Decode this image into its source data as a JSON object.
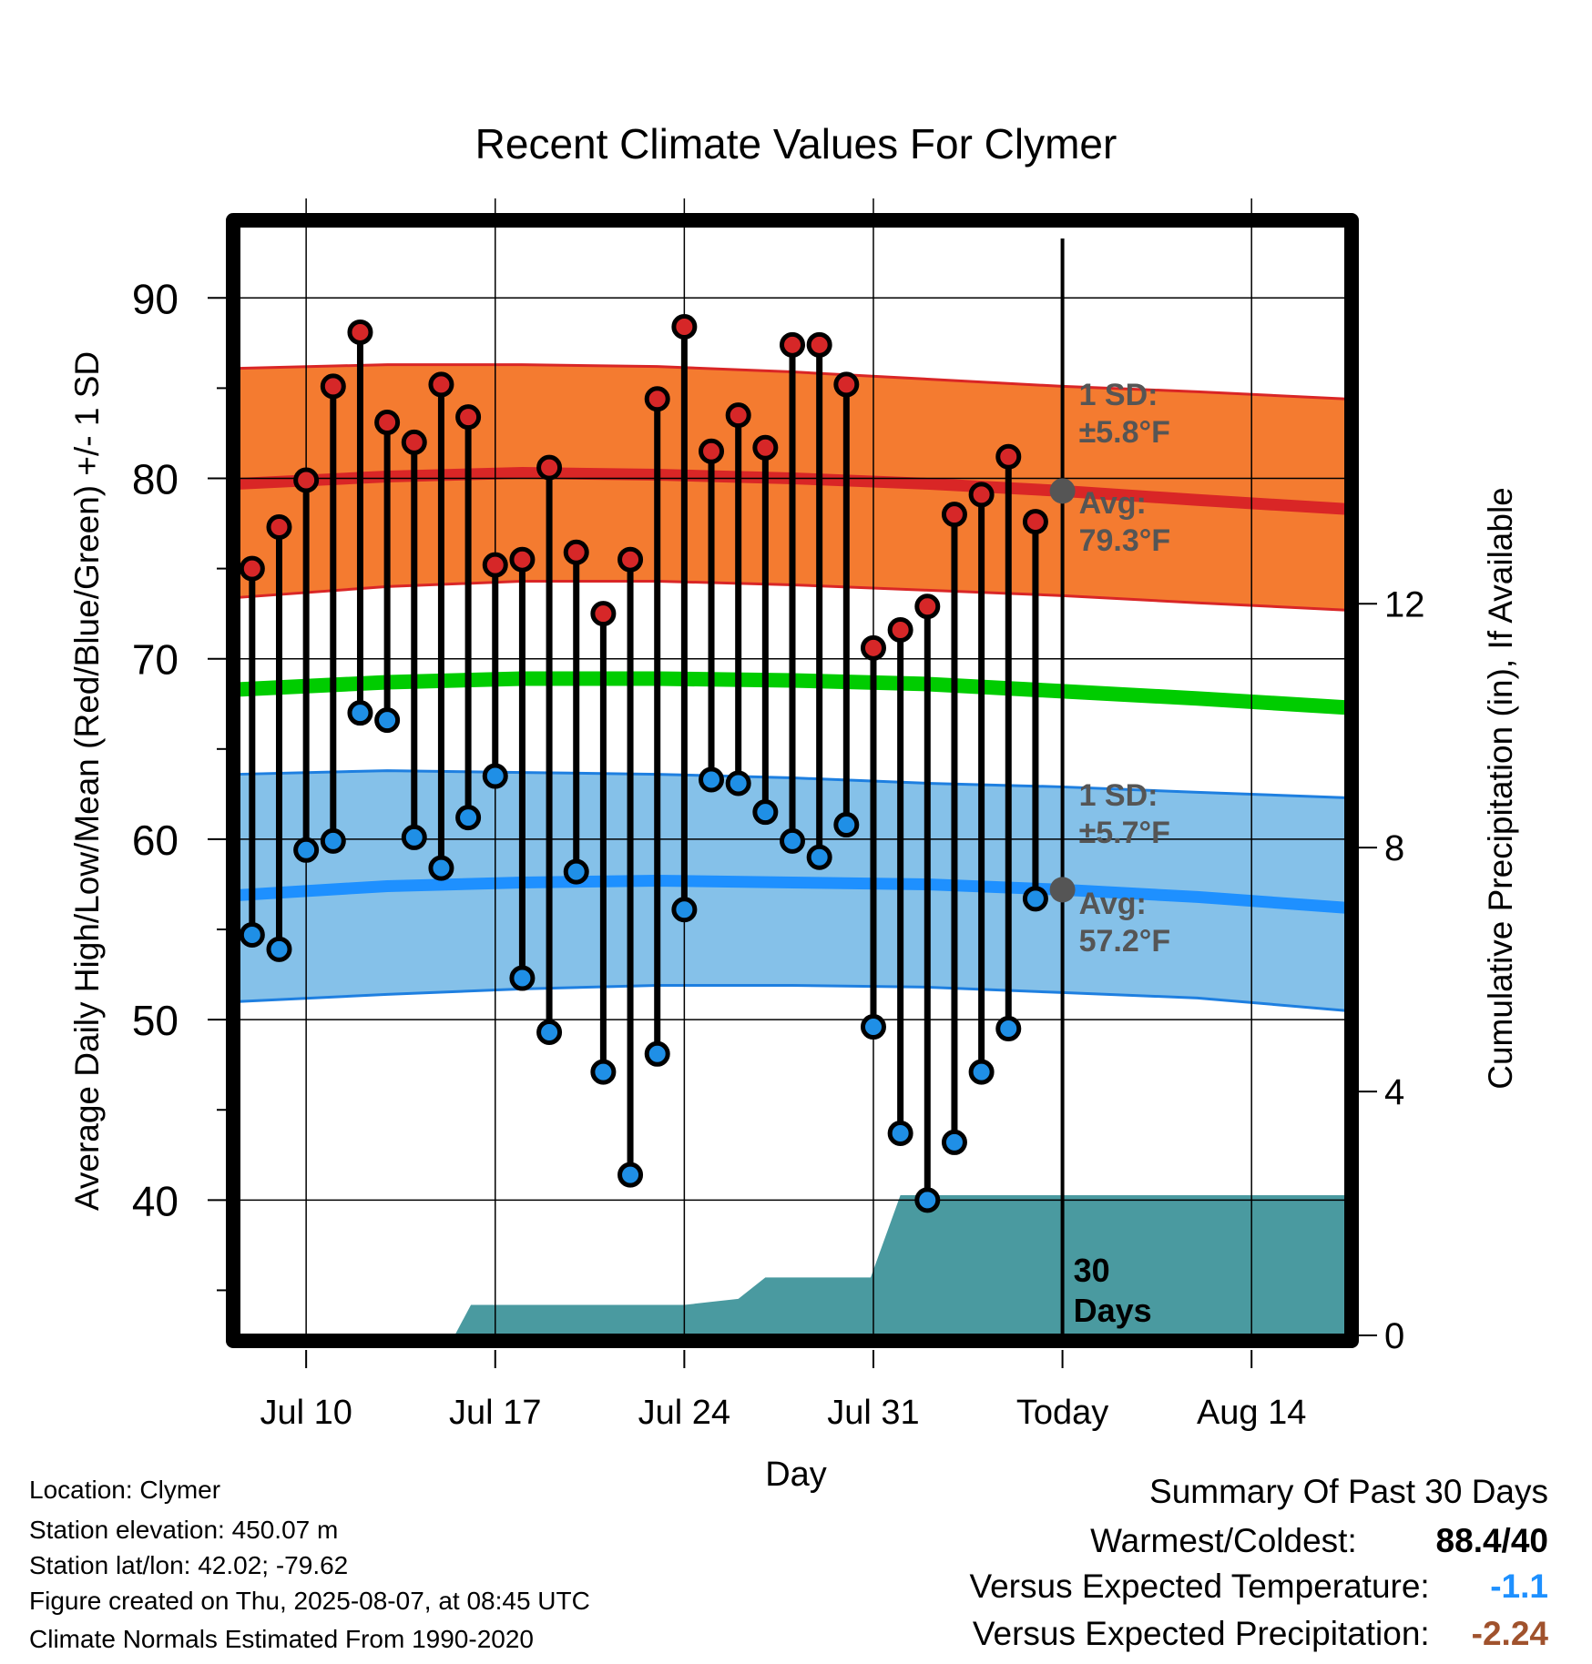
{
  "chart_data": {
    "type": "line",
    "title": "Recent Climate Values For Clymer",
    "xlabel": "Day",
    "ylabel": "Average Daily High/Low/Mean (Red/Blue/Green) +/- 1 SD",
    "y2label": "Cumulative Precipitation (in), If Available",
    "xlim": [
      -0.5,
      40.5
    ],
    "ylim": [
      32.5,
      94
    ],
    "y2lim": [
      0,
      18.2
    ],
    "x_ticks": [
      {
        "x": 2,
        "label": "Jul 10"
      },
      {
        "x": 9,
        "label": "Jul 17"
      },
      {
        "x": 16,
        "label": "Jul 24"
      },
      {
        "x": 23,
        "label": "Jul 31"
      },
      {
        "x": 30,
        "label": "Today"
      },
      {
        "x": 37,
        "label": "Aug 14"
      }
    ],
    "y_ticks": [
      40,
      50,
      60,
      70,
      80,
      90
    ],
    "y_minor_ticks": [
      35,
      45,
      55,
      65,
      75,
      85
    ],
    "y2_ticks": [
      0,
      4,
      8,
      12
    ],
    "today_x": 30,
    "observed": {
      "x": [
        0,
        1,
        2,
        3,
        4,
        5,
        6,
        7,
        8,
        9,
        10,
        11,
        12,
        13,
        14,
        15,
        16,
        17,
        18,
        19,
        20,
        21,
        22,
        23,
        24,
        25,
        26,
        27,
        28,
        29
      ],
      "high": [
        75.0,
        77.3,
        79.9,
        85.1,
        88.1,
        83.1,
        82.0,
        85.2,
        83.4,
        75.2,
        75.5,
        80.6,
        75.9,
        72.5,
        75.5,
        84.4,
        88.4,
        81.5,
        83.5,
        81.7,
        87.4,
        87.4,
        85.2,
        70.6,
        71.6,
        72.9,
        78.0,
        79.1,
        81.2,
        77.6
      ],
      "low": [
        54.7,
        53.9,
        59.4,
        59.9,
        67.0,
        66.6,
        60.1,
        58.4,
        61.2,
        63.5,
        52.3,
        49.3,
        58.2,
        47.1,
        41.4,
        48.1,
        56.1,
        63.3,
        63.1,
        61.5,
        59.9,
        59.0,
        60.8,
        49.6,
        43.7,
        40.0,
        43.2,
        47.1,
        49.5,
        56.7
      ]
    },
    "normals": {
      "x": [
        -0.5,
        5,
        10,
        15,
        20,
        25,
        30,
        35,
        40.5
      ],
      "high_avg": [
        79.7,
        80.1,
        80.3,
        80.2,
        80.0,
        79.7,
        79.3,
        78.8,
        78.3
      ],
      "high_sd_upper": [
        86.1,
        86.3,
        86.3,
        86.2,
        85.9,
        85.5,
        85.1,
        84.8,
        84.4
      ],
      "high_sd_lower": [
        73.4,
        74.0,
        74.3,
        74.3,
        74.1,
        73.8,
        73.5,
        73.1,
        72.7
      ],
      "mean_avg": [
        68.3,
        68.7,
        68.9,
        68.9,
        68.8,
        68.6,
        68.2,
        67.8,
        67.3
      ],
      "low_avg": [
        56.9,
        57.4,
        57.6,
        57.7,
        57.6,
        57.5,
        57.2,
        56.8,
        56.2
      ],
      "low_sd_upper": [
        63.6,
        63.8,
        63.7,
        63.6,
        63.4,
        63.1,
        62.9,
        62.6,
        62.3
      ],
      "low_sd_lower": [
        51.0,
        51.4,
        51.7,
        51.9,
        51.9,
        51.8,
        51.5,
        51.2,
        50.5
      ]
    },
    "precip": {
      "x": [
        -0.5,
        7.5,
        8.1,
        16.0,
        17.0,
        18.0,
        19.0,
        22.9,
        24.0,
        40.5
      ],
      "values": [
        0,
        0,
        0.5,
        0.5,
        0.55,
        0.6,
        0.95,
        0.95,
        2.3,
        2.3
      ]
    },
    "annotations": {
      "high_sd_line1": "1 SD:",
      "high_sd_line2": "±5.8°F",
      "high_avg_line1": "Avg:",
      "high_avg_line2": "79.3°F",
      "low_sd_line1": "1 SD:",
      "low_sd_line2": "±5.7°F",
      "low_avg_line1": "Avg:",
      "low_avg_line2": "57.2°F",
      "precip_line1": "30",
      "precip_line2": "Days"
    },
    "colors": {
      "high_band": "#f47b30",
      "high_avg": "#d92626",
      "mean_avg": "#00cc00",
      "low_band": "#85c1e9",
      "low_avg": "#1e90ff",
      "precip": "#4a9aa0",
      "high_marker": "#d62728",
      "low_marker": "#1f8fe6"
    }
  },
  "info": {
    "location": "Location: Clymer",
    "elevation": "Station elevation: 450.07 m",
    "latlon": "Station lat/lon: 42.02; -79.62",
    "created": "Figure created on Thu, 2025-08-07, at 08:45 UTC",
    "normals": "Climate Normals Estimated From 1990-2020"
  },
  "summary": {
    "title": "Summary Of Past 30 Days",
    "warmest_label": "Warmest/Coldest:",
    "warmest_value": "88.4/40",
    "temp_label": "Versus Expected Temperature:",
    "temp_value": "-1.1",
    "temp_color": "#1e90ff",
    "precip_label": "Versus Expected Precipitation:",
    "precip_value": "-2.24",
    "precip_color": "#a0522d"
  }
}
